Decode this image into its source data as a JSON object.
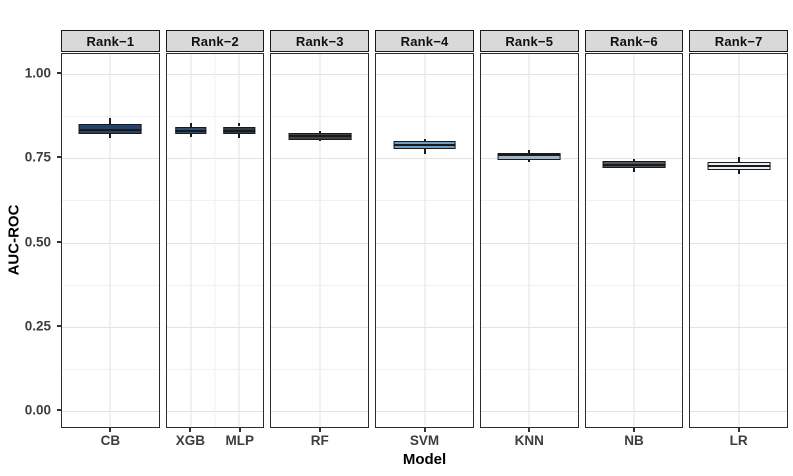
{
  "chart_data": {
    "type": "boxplot",
    "title": "",
    "xlabel": "Model",
    "ylabel": "AUC-ROC",
    "facet_variable": "Rank",
    "legend_position": "none",
    "grid": true,
    "ylim": [
      -0.053,
      1.059
    ],
    "y_ticks": [
      0,
      0.25,
      0.5,
      0.75,
      1
    ],
    "y_tick_labels": [
      "0.00",
      "0.25",
      "0.50",
      "0.75",
      "1.00"
    ],
    "y_minor_gridlines": [
      0.125,
      0.375,
      0.625,
      0.875
    ],
    "style": {
      "panel_border": "#2b2b2b",
      "strip_background": "#d9d9d9",
      "strip_border": "#1a1a1a",
      "grid_major": "#e3e3e3",
      "grid_minor": "#f2f2f2",
      "box_outline": "#1a1a1a",
      "tick_label_color": "#3d3d3d",
      "axis_title_color": "#000000"
    },
    "facets": [
      {
        "label": "Rank−1",
        "boxes": [
          {
            "model": "CB",
            "fill": "#24426b",
            "whisker_low": 0.81,
            "q1": 0.821,
            "median": 0.835,
            "q3": 0.85,
            "whisker_high": 0.87
          }
        ]
      },
      {
        "label": "Rank−2",
        "boxes": [
          {
            "model": "XGB",
            "fill": "#2b4e77",
            "whisker_low": 0.813,
            "q1": 0.823,
            "median": 0.832,
            "q3": 0.842,
            "whisker_high": 0.854
          },
          {
            "model": "MLP",
            "fill": "#333c46",
            "whisker_low": 0.811,
            "q1": 0.821,
            "median": 0.832,
            "q3": 0.844,
            "whisker_high": 0.854
          }
        ]
      },
      {
        "label": "Rank−3",
        "boxes": [
          {
            "model": "RF",
            "fill": "#3f4347",
            "whisker_low": 0.8,
            "q1": 0.805,
            "median": 0.815,
            "q3": 0.825,
            "whisker_high": 0.83
          }
        ]
      },
      {
        "label": "Rank−4",
        "boxes": [
          {
            "model": "SVM",
            "fill": "#6d9ec7",
            "whisker_low": 0.762,
            "q1": 0.776,
            "median": 0.79,
            "q3": 0.8,
            "whisker_high": 0.806
          }
        ]
      },
      {
        "label": "Rank−5",
        "boxes": [
          {
            "model": "KNN",
            "fill": "#9fb4c7",
            "whisker_low": 0.738,
            "q1": 0.746,
            "median": 0.76,
            "q3": 0.764,
            "whisker_high": 0.774
          }
        ]
      },
      {
        "label": "Rank−6",
        "boxes": [
          {
            "model": "NB",
            "fill": "#4e565c",
            "whisker_low": 0.71,
            "q1": 0.722,
            "median": 0.731,
            "q3": 0.742,
            "whisker_high": 0.749
          }
        ]
      },
      {
        "label": "Rank−7",
        "boxes": [
          {
            "model": "LR",
            "fill": "#e9edf4",
            "whisker_low": 0.702,
            "q1": 0.715,
            "median": 0.728,
            "q3": 0.738,
            "whisker_high": 0.753
          }
        ]
      }
    ]
  }
}
